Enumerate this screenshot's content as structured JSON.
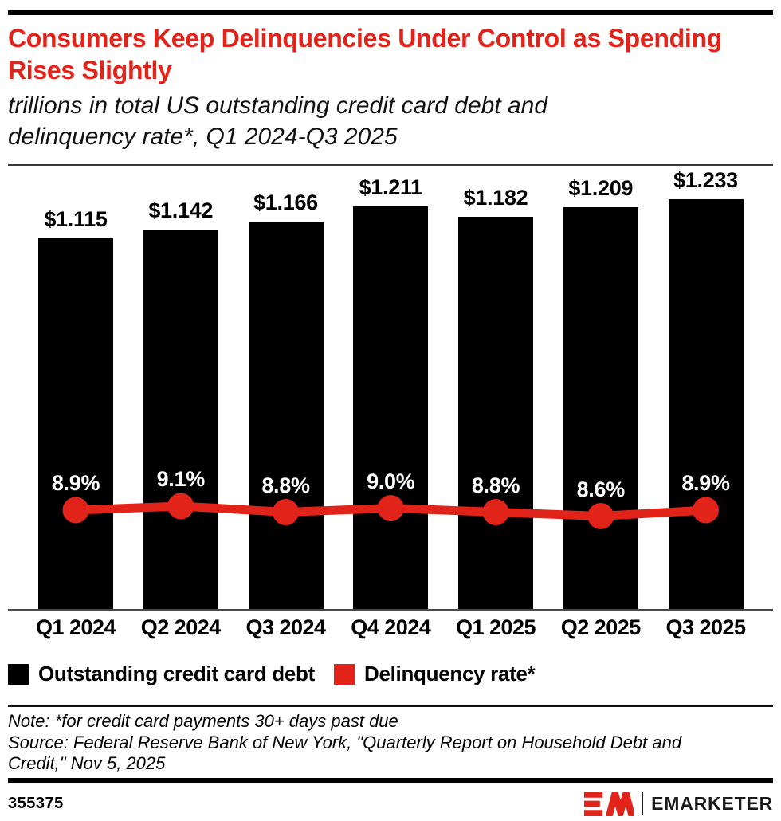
{
  "header": {
    "title": "Consumers Keep Delinquencies Under Control as Spending Rises Slightly",
    "title_color": "#e2231a",
    "subtitle": "trillions in total US outstanding credit card debt and delinquency rate*, Q1 2024-Q3 2025"
  },
  "chart_data": {
    "type": "bar",
    "subtype": "bar-line-combo",
    "title": "Consumers Keep Delinquencies Under Control as Spending Rises Slightly",
    "xlabel": "",
    "ylabel": "",
    "grid": false,
    "legend_position": "bottom",
    "bar_ylim": [
      0,
      1.32
    ],
    "categories": [
      "Q1 2024",
      "Q2 2024",
      "Q3 2024",
      "Q4 2024",
      "Q1 2025",
      "Q2 2025",
      "Q3 2025"
    ],
    "series": [
      {
        "name": "Outstanding credit card debt",
        "type": "bar",
        "unit": "trillions of US dollars",
        "color": "#000000",
        "label_color": "#000000",
        "values": [
          1.115,
          1.142,
          1.166,
          1.211,
          1.182,
          1.209,
          1.233
        ],
        "labels": [
          "$1.115",
          "$1.142",
          "$1.166",
          "$1.211",
          "$1.182",
          "$1.209",
          "$1.233"
        ]
      },
      {
        "name": "Delinquency rate*",
        "type": "line",
        "unit": "%",
        "color": "#e2231a",
        "label_color": "#ffffff",
        "values": [
          8.9,
          9.1,
          8.8,
          9.0,
          8.8,
          8.6,
          8.9
        ],
        "labels": [
          "8.9%",
          "9.1%",
          "8.8%",
          "9.0%",
          "8.8%",
          "8.6%",
          "8.9%"
        ]
      }
    ]
  },
  "legend": {
    "items": [
      {
        "label": "Outstanding credit card debt",
        "color": "#000000"
      },
      {
        "label": "Delinquency rate*",
        "color": "#e2231a"
      }
    ]
  },
  "notes": {
    "note": "Note: *for credit card payments 30+ days past due",
    "source": "Source: Federal Reserve Bank of New York, \"Quarterly Report on Household Debt and Credit,\" Nov 5, 2025"
  },
  "footer": {
    "chart_id": "355375",
    "brand_name": "EMARKETER",
    "brand_color": "#e2231a"
  }
}
